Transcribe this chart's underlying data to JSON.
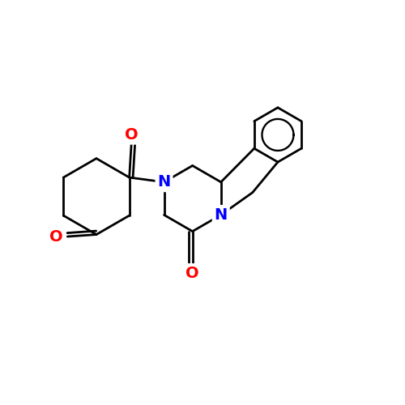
{
  "bg": "#ffffff",
  "bond_color": "#000000",
  "N_color": "#0000ff",
  "O_color": "#ff0000",
  "lw": 2.0,
  "fs": 14,
  "figsize": [
    5.0,
    5.0
  ],
  "dpi": 100,
  "xlim": [
    0,
    10
  ],
  "ylim": [
    0,
    10
  ]
}
